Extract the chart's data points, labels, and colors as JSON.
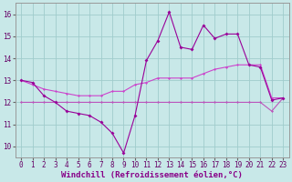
{
  "xlabel": "Windchill (Refroidissement éolien,°C)",
  "background_color": "#c8e8e8",
  "grid_color": "#b0d8d8",
  "line1_color": "#990099",
  "line2_color": "#cc44cc",
  "line3_color": "#aa00aa",
  "line1_x": [
    0,
    1,
    2,
    3,
    4,
    5,
    6,
    7,
    8,
    9,
    10,
    11,
    12,
    13,
    14,
    15,
    16,
    17,
    18,
    19,
    20,
    21,
    22,
    23
  ],
  "line1_y": [
    13.0,
    12.9,
    12.3,
    12.0,
    11.6,
    11.5,
    11.4,
    11.1,
    10.6,
    9.7,
    11.4,
    13.9,
    14.8,
    16.1,
    14.5,
    14.4,
    15.5,
    14.9,
    15.1,
    15.1,
    13.7,
    13.6,
    12.1,
    12.2
  ],
  "line2_x": [
    0,
    1,
    2,
    3,
    4,
    5,
    6,
    7,
    8,
    9,
    10,
    11,
    12,
    13,
    14,
    15,
    16,
    17,
    18,
    19,
    20,
    21,
    22,
    23
  ],
  "line2_y": [
    13.0,
    12.8,
    12.6,
    12.5,
    12.4,
    12.3,
    12.3,
    12.3,
    12.5,
    12.5,
    12.8,
    12.9,
    13.1,
    13.1,
    13.1,
    13.1,
    13.3,
    13.5,
    13.6,
    13.7,
    13.7,
    13.7,
    12.2,
    12.2
  ],
  "line3_x": [
    0,
    1,
    2,
    3,
    4,
    5,
    6,
    7,
    8,
    9,
    10,
    11,
    12,
    13,
    14,
    15,
    16,
    17,
    18,
    19,
    20,
    21,
    22,
    23
  ],
  "line3_y": [
    12.0,
    12.0,
    12.0,
    12.0,
    12.0,
    12.0,
    12.0,
    12.0,
    12.0,
    12.0,
    12.0,
    12.0,
    12.0,
    12.0,
    12.0,
    12.0,
    12.0,
    12.0,
    12.0,
    12.0,
    12.0,
    12.0,
    11.6,
    12.2
  ],
  "ylim": [
    9.5,
    16.5
  ],
  "xlim": [
    -0.5,
    23.5
  ],
  "yticks": [
    10,
    11,
    12,
    13,
    14,
    15,
    16
  ],
  "xticks": [
    0,
    1,
    2,
    3,
    4,
    5,
    6,
    7,
    8,
    9,
    10,
    11,
    12,
    13,
    14,
    15,
    16,
    17,
    18,
    19,
    20,
    21,
    22,
    23
  ],
  "tick_fontsize": 5.5,
  "xlabel_fontsize": 6.5
}
